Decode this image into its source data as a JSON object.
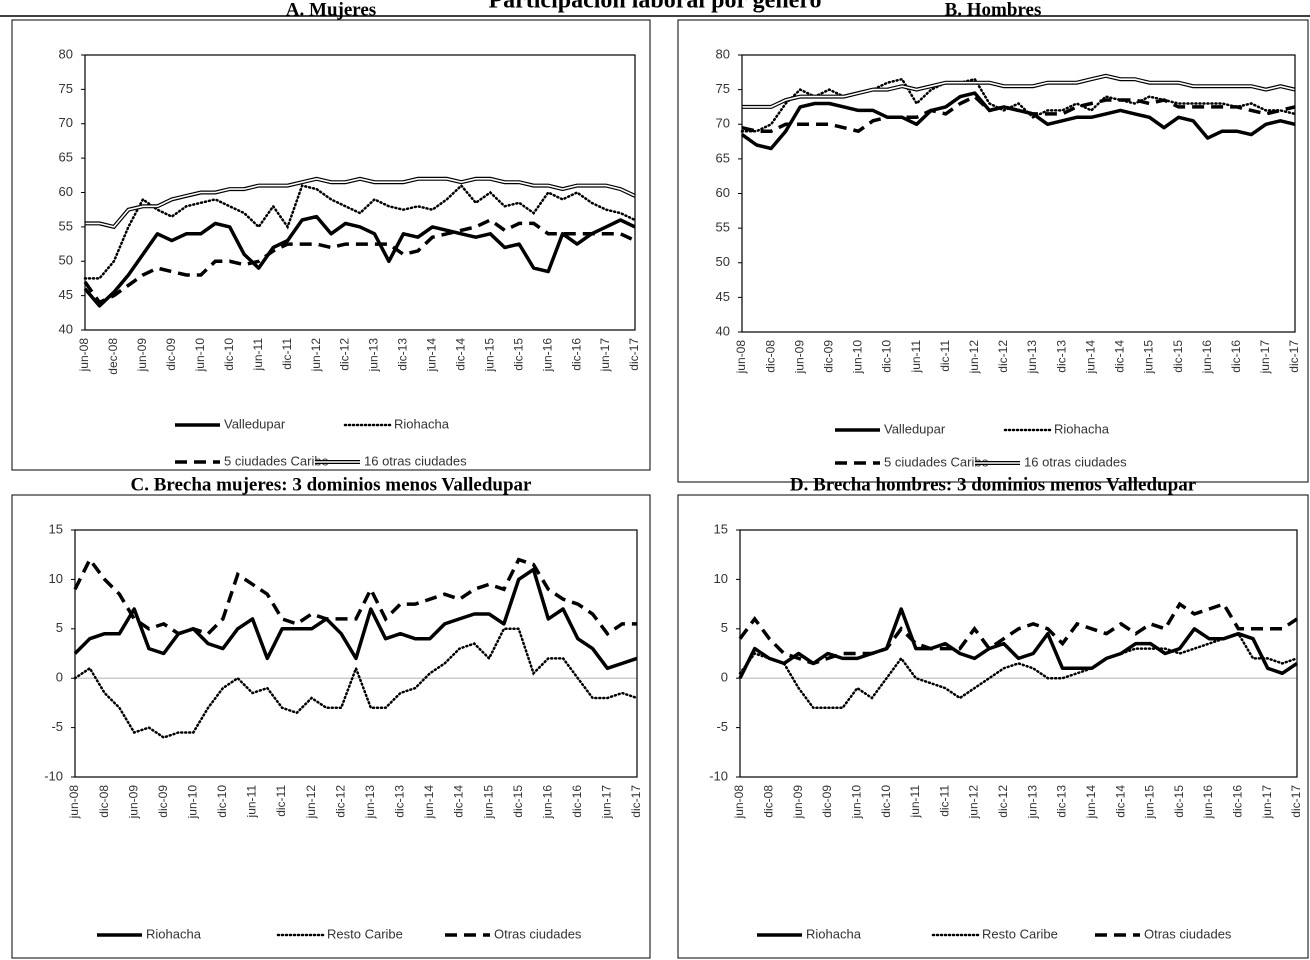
{
  "title": "Participación laboral por género",
  "chart_data": [
    {
      "type": "line",
      "title": "A. Mujeres",
      "categories": [
        "jun-08",
        null,
        "dec-08",
        null,
        "jun-09",
        null,
        "dic-09",
        null,
        "jun-10",
        null,
        "dic-10",
        null,
        "jun-11",
        null,
        "dic-11",
        null,
        "jun-12",
        null,
        "dic-12",
        null,
        "jun-13",
        null,
        "dic-13",
        null,
        "jun-14",
        null,
        "dic-14",
        null,
        "jun-15",
        null,
        "dic-15",
        null,
        "jun-16",
        null,
        "dic-16",
        null,
        "jun-17",
        null,
        "dic-17"
      ],
      "ylim": [
        40,
        80
      ],
      "yticks": [
        40,
        45,
        50,
        55,
        60,
        65,
        70,
        75,
        80
      ],
      "series": [
        {
          "name": "Valledupar",
          "color": "#000000",
          "style": "solid",
          "values": [
            46,
            43.5,
            45.5,
            48,
            51,
            54,
            53,
            54,
            54,
            55.5,
            55,
            51,
            49,
            52,
            53,
            56,
            56.5,
            54,
            55.5,
            55,
            54,
            50,
            54,
            53.5,
            55,
            54.5,
            54,
            53.5,
            54,
            52,
            52.5,
            49,
            48.5,
            54,
            52.5,
            54,
            55,
            56,
            55
          ]
        },
        {
          "name": "Riohacha",
          "color": "#000000",
          "style": "dotted",
          "values": [
            47.5,
            47.5,
            50,
            55,
            59,
            57.5,
            56.5,
            58,
            58.5,
            59,
            58,
            57,
            55,
            58,
            55,
            61,
            60.5,
            59,
            58,
            57,
            59,
            58,
            57.5,
            58,
            57.5,
            59,
            61,
            58.5,
            60,
            58,
            58.5,
            57,
            60,
            59,
            60,
            58.5,
            57.5,
            57,
            56
          ]
        },
        {
          "name": "5 ciudades Caribe",
          "color": "#000000",
          "style": "dashed",
          "values": [
            47,
            44,
            45,
            46.5,
            48,
            49,
            48.5,
            48,
            48,
            50,
            50,
            49.5,
            50,
            51.5,
            52.5,
            52.5,
            52.5,
            52,
            52.5,
            52.5,
            52.5,
            52.5,
            51,
            51.5,
            53.5,
            54,
            54.5,
            55,
            56,
            54.5,
            55.5,
            55.5,
            54,
            54,
            54,
            54,
            54,
            54,
            53
          ]
        },
        {
          "name": "16 otras ciudades",
          "color": "#000000",
          "style": "double",
          "values": [
            55.5,
            55.5,
            55,
            57.5,
            58,
            58,
            59,
            59.5,
            60,
            60,
            60.5,
            60.5,
            61,
            61,
            61,
            61.5,
            62,
            61.5,
            61.5,
            62,
            61.5,
            61.5,
            61.5,
            62,
            62,
            62,
            61.5,
            62,
            62,
            61.5,
            61.5,
            61,
            61,
            60.5,
            61,
            61,
            61,
            60.5,
            59.5
          ]
        }
      ]
    },
    {
      "type": "line",
      "title": "B. Hombres",
      "categories": [
        "jun-08",
        null,
        "dic-08",
        null,
        "jun-09",
        null,
        "dic-09",
        null,
        "jun-10",
        null,
        "dic-10",
        null,
        "jun-11",
        null,
        "dic-11",
        null,
        "jun-12",
        null,
        "dic-12",
        null,
        "jun-13",
        null,
        "dic-13",
        null,
        "jun-14",
        null,
        "dic-14",
        null,
        "jun-15",
        null,
        "dic-15",
        null,
        "jun-16",
        null,
        "dic-16",
        null,
        "jun-17",
        null,
        "dic-17"
      ],
      "ylim": [
        40,
        80
      ],
      "yticks": [
        40,
        45,
        50,
        55,
        60,
        65,
        70,
        75,
        80
      ],
      "series": [
        {
          "name": "Valledupar",
          "color": "#000000",
          "style": "solid",
          "values": [
            68.5,
            67,
            66.5,
            69,
            72.5,
            73,
            73,
            72.5,
            72,
            72,
            71,
            71,
            70,
            72,
            72.5,
            74,
            74.5,
            72,
            72.5,
            72,
            71.5,
            70,
            70.5,
            71,
            71,
            71.5,
            72,
            71.5,
            71,
            69.5,
            71,
            70.5,
            68,
            69,
            69,
            68.5,
            70,
            70.5,
            70
          ]
        },
        {
          "name": "Riohacha",
          "color": "#000000",
          "style": "dotted",
          "values": [
            69,
            69,
            70,
            73,
            75,
            74,
            75,
            74,
            74.5,
            75,
            76,
            76.5,
            73,
            75,
            76,
            76,
            76.5,
            73,
            72,
            73,
            71,
            72,
            72,
            73,
            72,
            74,
            73.5,
            73,
            74,
            73.5,
            73,
            73,
            73,
            73,
            72.5,
            73,
            72,
            72,
            71.5
          ]
        },
        {
          "name": "5 ciudades Caribe",
          "color": "#000000",
          "style": "dashed",
          "values": [
            69.5,
            69,
            69,
            70,
            70,
            70,
            70,
            69.5,
            69,
            70.5,
            71,
            71,
            71,
            72,
            71.5,
            73,
            74,
            72,
            72.5,
            72,
            71.5,
            71.5,
            71.5,
            72.5,
            73,
            73.5,
            73.5,
            73.5,
            73,
            73.5,
            72.5,
            72.5,
            72.5,
            72.5,
            72.5,
            72,
            71.5,
            72,
            72.5
          ]
        },
        {
          "name": "16 otras ciudades",
          "color": "#000000",
          "style": "double",
          "values": [
            72.5,
            72.5,
            72.5,
            73.5,
            74,
            74,
            74,
            74,
            74.5,
            75,
            75,
            75.5,
            75,
            75.5,
            76,
            76,
            76,
            76,
            75.5,
            75.5,
            75.5,
            76,
            76,
            76,
            76.5,
            77,
            76.5,
            76.5,
            76,
            76,
            76,
            75.5,
            75.5,
            75.5,
            75.5,
            75.5,
            75,
            75.5,
            75
          ]
        }
      ]
    },
    {
      "type": "line",
      "title": "C. Brecha mujeres: 3 dominios menos Valledupar",
      "categories": [
        "jun-08",
        null,
        "dic-08",
        null,
        "jun-09",
        null,
        "dic-09",
        null,
        "jun-10",
        null,
        "dic-10",
        null,
        "jun-11",
        null,
        "dic-11",
        null,
        "jun-12",
        null,
        "dic-12",
        null,
        "jun-13",
        null,
        "dic-13",
        null,
        "jun-14",
        null,
        "dic-14",
        null,
        "jun-15",
        null,
        "dic-15",
        null,
        "jun-16",
        null,
        "dic-16",
        null,
        "jun-17",
        null,
        "dic-17"
      ],
      "ylim": [
        -10,
        15
      ],
      "yticks": [
        -10,
        -5,
        0,
        5,
        10,
        15
      ],
      "zero_line": true,
      "series": [
        {
          "name": "Riohacha",
          "color": "#000000",
          "style": "solid",
          "values": [
            2.5,
            4,
            4.5,
            4.5,
            7,
            3,
            2.5,
            4.5,
            5,
            3.5,
            3,
            5,
            6,
            2,
            5,
            5,
            5,
            6,
            4.5,
            2,
            7,
            4,
            4.5,
            4,
            4,
            5.5,
            6,
            6.5,
            6.5,
            5.5,
            10,
            11,
            6,
            7,
            4,
            3,
            1,
            1.5,
            2
          ]
        },
        {
          "name": "Resto Caribe",
          "color": "#000000",
          "style": "dotted",
          "values": [
            0,
            1,
            -1.5,
            -3,
            -5.5,
            -5,
            -6,
            -5.5,
            -5.5,
            -3,
            -1,
            0,
            -1.5,
            -1,
            -3,
            -3.5,
            -2,
            -3,
            -3,
            1,
            -3,
            -3,
            -1.5,
            -1,
            0.5,
            1.5,
            3,
            3.5,
            2,
            5,
            5,
            0.5,
            2,
            2,
            0,
            -2,
            -2,
            -1.5,
            -2
          ]
        },
        {
          "name": "Otras ciudades",
          "color": "#000000",
          "style": "dashed",
          "values": [
            9,
            12,
            10,
            8.5,
            6,
            5,
            5.5,
            4.5,
            5,
            4.5,
            6,
            10.5,
            9.5,
            8.5,
            6,
            5.5,
            6.5,
            6,
            6,
            6,
            9,
            6,
            7.5,
            7.5,
            8,
            8.5,
            8,
            9,
            9.5,
            9,
            12,
            11.5,
            9,
            8,
            7.5,
            6.5,
            4.5,
            5.5,
            5.5
          ]
        }
      ]
    },
    {
      "type": "line",
      "title": "D. Brecha hombres: 3 dominios menos Valledupar",
      "categories": [
        "jun-08",
        null,
        "dic-08",
        null,
        "jun-09",
        null,
        "dic-09",
        null,
        "jun-10",
        null,
        "dic-10",
        null,
        "jun-11",
        null,
        "dic-11",
        null,
        "jun-12",
        null,
        "dic-12",
        null,
        "jun-13",
        null,
        "dic-13",
        null,
        "jun-14",
        null,
        "dic-14",
        null,
        "jun-15",
        null,
        "dic-15",
        null,
        "jun-16",
        null,
        "dic-16",
        null,
        "jun-17",
        null,
        "dic-17"
      ],
      "ylim": [
        -10,
        15
      ],
      "yticks": [
        -10,
        -5,
        0,
        5,
        10,
        15
      ],
      "zero_line": true,
      "series": [
        {
          "name": "Riohacha",
          "color": "#000000",
          "style": "solid",
          "values": [
            0,
            3,
            2,
            1.5,
            2.5,
            1.5,
            2.5,
            2,
            2,
            2.5,
            3,
            7,
            3,
            3,
            3.5,
            2.5,
            2,
            3,
            3.5,
            2,
            2.5,
            4.5,
            1,
            1,
            1,
            2,
            2.5,
            3.5,
            3.5,
            2.5,
            3,
            5,
            4,
            4,
            4.5,
            4,
            1,
            0.5,
            1.5
          ]
        },
        {
          "name": "Resto Caribe",
          "color": "#000000",
          "style": "dotted",
          "values": [
            0.5,
            2.5,
            2,
            1.5,
            -1,
            -3,
            -3,
            -3,
            -1,
            -2,
            0,
            2,
            0,
            -0.5,
            -1,
            -2,
            -1,
            0,
            1,
            1.5,
            1,
            0,
            0,
            0.5,
            1,
            2,
            2.5,
            3,
            3,
            3,
            2.5,
            3,
            3.5,
            4,
            4.5,
            2,
            2,
            1.5,
            2
          ]
        },
        {
          "name": "Otras ciudades",
          "color": "#000000",
          "style": "dashed",
          "values": [
            4,
            6,
            4,
            2.5,
            2,
            1.5,
            2,
            2.5,
            2.5,
            2.5,
            3,
            5,
            3.5,
            3,
            3,
            3,
            5,
            3,
            4,
            5,
            5.5,
            5,
            3.5,
            5.5,
            5,
            4.5,
            5.5,
            4.5,
            5.5,
            5,
            7.5,
            6.5,
            7,
            7.5,
            5,
            5,
            5,
            5,
            6
          ]
        }
      ]
    }
  ]
}
